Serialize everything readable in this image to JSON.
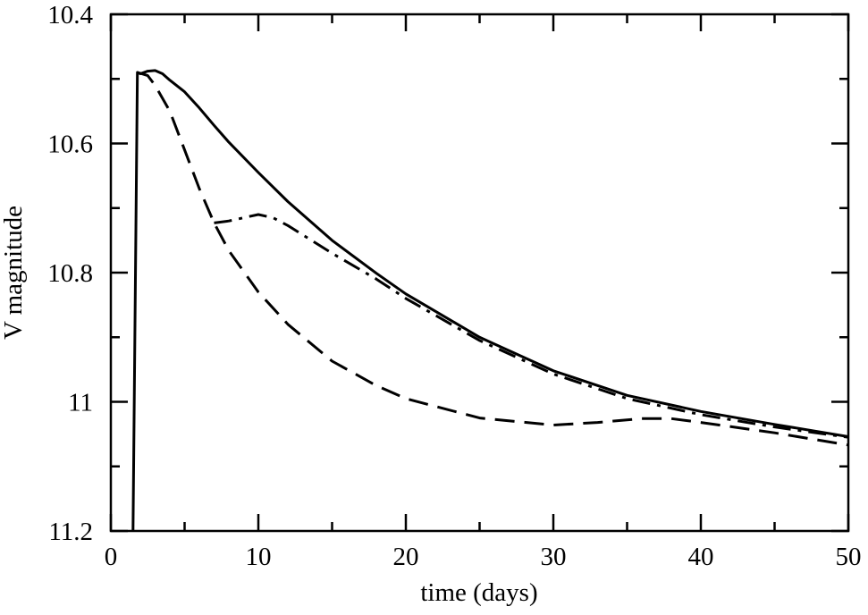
{
  "chart_data": {
    "type": "line",
    "title": "",
    "xlabel": "time (days)",
    "ylabel": "V magnitude",
    "xlim": [
      0,
      50
    ],
    "ylim": [
      10.4,
      11.2
    ],
    "y_inverted": true,
    "grid": false,
    "legend": "none",
    "x_major_ticks": [
      0,
      10,
      20,
      30,
      40,
      50
    ],
    "x_minor_ticks": [
      5,
      15,
      25,
      35,
      45
    ],
    "x_tick_labels": [
      "0",
      "10",
      "20",
      "30",
      "40",
      "50"
    ],
    "y_major_ticks": [
      10.4,
      10.6,
      10.8,
      11.0,
      11.2
    ],
    "y_minor_ticks": [
      10.5,
      10.7,
      10.9,
      11.1
    ],
    "y_tick_labels": [
      "10.4",
      "10.6",
      "10.8",
      "11",
      "11.2"
    ],
    "series": [
      {
        "style": "solid",
        "points": [
          [
            1.5,
            11.2
          ],
          [
            1.8,
            10.49
          ],
          [
            2.0,
            10.492
          ],
          [
            2.5,
            10.488
          ],
          [
            3.0,
            10.487
          ],
          [
            3.5,
            10.492
          ],
          [
            4.0,
            10.502
          ],
          [
            5.0,
            10.52
          ],
          [
            6.0,
            10.545
          ],
          [
            7.0,
            10.572
          ],
          [
            8.0,
            10.598
          ],
          [
            10.0,
            10.645
          ],
          [
            12.0,
            10.69
          ],
          [
            15.0,
            10.75
          ],
          [
            18.0,
            10.801
          ],
          [
            20.0,
            10.833
          ],
          [
            25.0,
            10.9
          ],
          [
            30.0,
            10.952
          ],
          [
            35.0,
            10.99
          ],
          [
            40.0,
            11.015
          ],
          [
            45.0,
            11.035
          ],
          [
            50.0,
            11.054
          ]
        ]
      },
      {
        "style": "dashed",
        "points": [
          [
            1.8,
            10.49
          ],
          [
            2.5,
            10.495
          ],
          [
            3.0,
            10.51
          ],
          [
            4.0,
            10.55
          ],
          [
            5.0,
            10.61
          ],
          [
            6.0,
            10.67
          ],
          [
            7.0,
            10.723
          ],
          [
            8.0,
            10.766
          ],
          [
            10.0,
            10.83
          ],
          [
            12.0,
            10.88
          ],
          [
            15.0,
            10.937
          ],
          [
            18.0,
            10.975
          ],
          [
            20.0,
            10.995
          ],
          [
            25.0,
            11.025
          ],
          [
            30.0,
            11.036
          ],
          [
            33.0,
            11.032
          ],
          [
            36.0,
            11.026
          ],
          [
            38.0,
            11.026
          ],
          [
            40.0,
            11.032
          ],
          [
            45.0,
            11.048
          ],
          [
            50.0,
            11.067
          ]
        ]
      },
      {
        "style": "dash-dot",
        "points": [
          [
            7.0,
            10.723
          ],
          [
            8.0,
            10.72
          ],
          [
            9.0,
            10.715
          ],
          [
            10.0,
            10.71
          ],
          [
            11.0,
            10.715
          ],
          [
            12.0,
            10.727
          ],
          [
            15.0,
            10.77
          ],
          [
            18.0,
            10.81
          ],
          [
            20.0,
            10.84
          ],
          [
            25.0,
            10.905
          ],
          [
            30.0,
            10.957
          ],
          [
            35.0,
            10.995
          ],
          [
            40.0,
            11.02
          ],
          [
            45.0,
            11.039
          ],
          [
            50.0,
            11.055
          ]
        ]
      }
    ]
  }
}
